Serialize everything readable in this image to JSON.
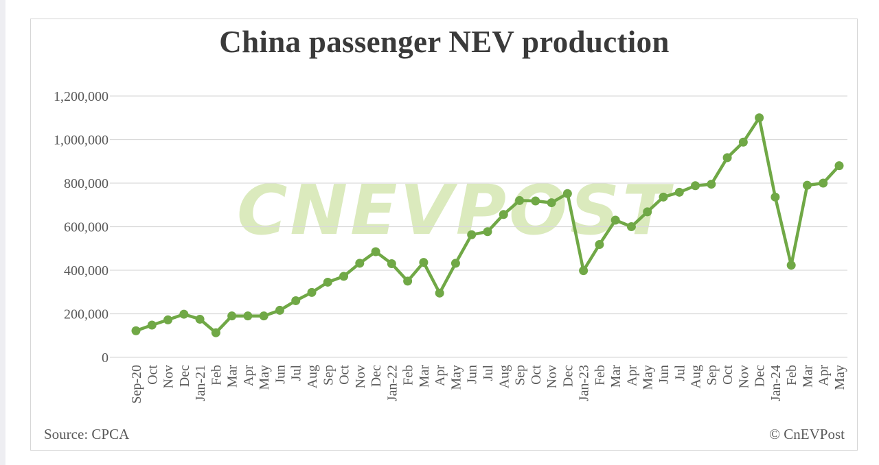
{
  "chart_data": {
    "type": "line",
    "title": "China passenger NEV production",
    "x_labels": [
      "Sep-20",
      "Oct",
      "Nov",
      "Dec",
      "Jan-21",
      "Feb",
      "Mar",
      "Apr",
      "May",
      "Jun",
      "Jul",
      "Aug",
      "Sep",
      "Oct",
      "Nov",
      "Dec",
      "Jan-22",
      "Feb",
      "Mar",
      "Apr",
      "May",
      "Jun",
      "Jul",
      "Aug",
      "Sep",
      "Oct",
      "Nov",
      "Dec",
      "Jan-23",
      "Feb",
      "Mar",
      "Apr",
      "May",
      "Jun",
      "Jul",
      "Aug",
      "Sep",
      "Oct",
      "Nov",
      "Dec",
      "Jan-24",
      "Feb",
      "Mar",
      "Apr",
      "May"
    ],
    "series": [
      {
        "values": [
          122000,
          148000,
          172000,
          198000,
          175000,
          113000,
          190000,
          190000,
          190000,
          216000,
          260000,
          298000,
          345000,
          372000,
          432000,
          485000,
          430000,
          350000,
          436000,
          295000,
          432000,
          563000,
          577000,
          656000,
          720000,
          718000,
          710000,
          752000,
          398000,
          518000,
          630000,
          600000,
          668000,
          736000,
          758000,
          788000,
          795000,
          917000,
          988000,
          1100000,
          736000,
          423000,
          790000,
          800000,
          880000
        ]
      }
    ],
    "ylim": [
      0,
      1200000
    ],
    "yticks": [
      0,
      200000,
      400000,
      600000,
      800000,
      1000000,
      1200000
    ],
    "ytick_labels": [
      "0",
      "200,000",
      "400,000",
      "600,000",
      "800,000",
      "1,000,000",
      "1,200,000"
    ],
    "grid": true,
    "line_color": "#70a846",
    "gridline_color": "#d9d9d9",
    "watermark": "CNEVPOST",
    "watermark_color": "#cfe3a8",
    "source": "Source: CPCA",
    "copyright": "© CnEVPost"
  }
}
